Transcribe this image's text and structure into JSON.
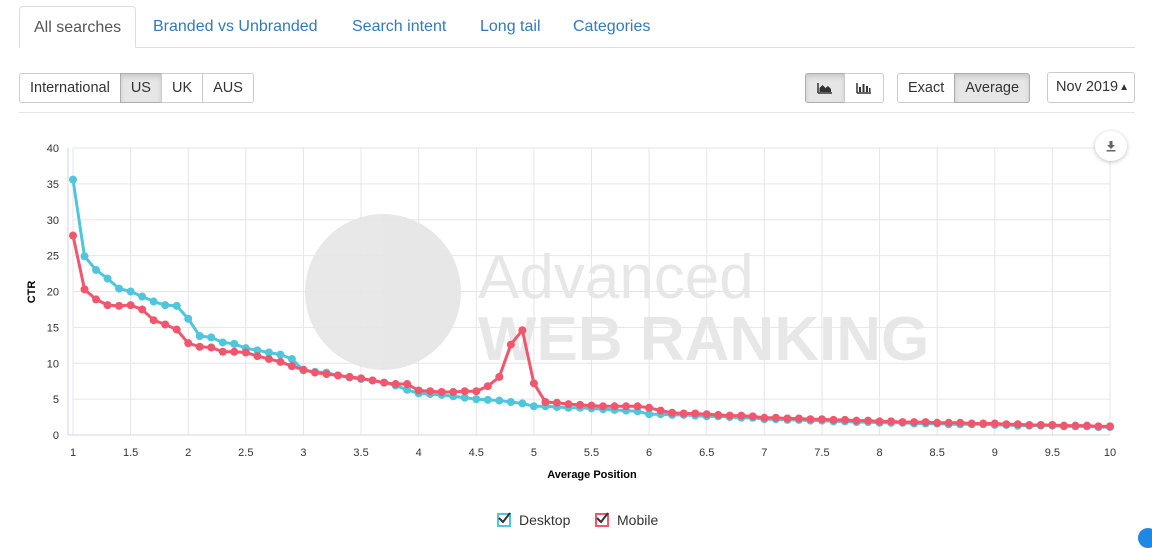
{
  "tabs": [
    {
      "label": "All searches",
      "active": true
    },
    {
      "label": "Branded vs Unbranded",
      "active": false
    },
    {
      "label": "Search intent",
      "active": false
    },
    {
      "label": "Long tail",
      "active": false
    },
    {
      "label": "Categories",
      "active": false
    }
  ],
  "regions": [
    {
      "label": "International",
      "active": false
    },
    {
      "label": "US",
      "active": true
    },
    {
      "label": "UK",
      "active": false
    },
    {
      "label": "AUS",
      "active": false
    }
  ],
  "chart_view": {
    "area_icon": "area-chart-icon",
    "bar_icon": "bar-chart-icon",
    "active": "area"
  },
  "match": [
    {
      "label": "Exact",
      "active": false
    },
    {
      "label": "Average",
      "active": true
    }
  ],
  "date_select": {
    "value": "Nov 2019",
    "icon": "select-arrows-icon"
  },
  "download_icon": "download-icon",
  "watermark": {
    "line1": "Advanced",
    "line2": "WEB RANKING"
  },
  "chart_data": {
    "type": "line",
    "xlabel": "Average Position",
    "ylabel": "CTR",
    "xlim": [
      1,
      10
    ],
    "ylim": [
      0,
      40
    ],
    "x_ticks": [
      "1",
      "1.5",
      "2",
      "2.5",
      "3",
      "3.5",
      "4",
      "4.5",
      "5",
      "5.5",
      "6",
      "6.5",
      "7",
      "7.5",
      "8",
      "8.5",
      "9",
      "9.5",
      "10"
    ],
    "y_ticks": [
      "0",
      "5",
      "10",
      "15",
      "20",
      "25",
      "30",
      "35",
      "40"
    ],
    "grid": true,
    "legend_position": "bottom-center",
    "x": [
      1.0,
      1.1,
      1.2,
      1.3,
      1.4,
      1.5,
      1.6,
      1.7,
      1.8,
      1.9,
      2.0,
      2.1,
      2.2,
      2.3,
      2.4,
      2.5,
      2.6,
      2.7,
      2.8,
      2.9,
      3.0,
      3.1,
      3.2,
      3.3,
      3.4,
      3.5,
      3.6,
      3.7,
      3.8,
      3.9,
      4.0,
      4.1,
      4.2,
      4.3,
      4.4,
      4.5,
      4.6,
      4.7,
      4.8,
      4.9,
      5.0,
      5.1,
      5.2,
      5.3,
      5.4,
      5.5,
      5.6,
      5.7,
      5.8,
      5.9,
      6.0,
      6.1,
      6.2,
      6.3,
      6.4,
      6.5,
      6.6,
      6.7,
      6.8,
      6.9,
      7.0,
      7.1,
      7.2,
      7.3,
      7.4,
      7.5,
      7.6,
      7.7,
      7.8,
      7.9,
      8.0,
      8.1,
      8.2,
      8.3,
      8.4,
      8.5,
      8.6,
      8.7,
      8.8,
      8.9,
      9.0,
      9.1,
      9.2,
      9.3,
      9.4,
      9.5,
      9.6,
      9.7,
      9.8,
      9.9,
      10.0
    ],
    "series": [
      {
        "name": "Desktop",
        "color": "#4fc6db",
        "values": [
          35.6,
          24.9,
          23.0,
          21.8,
          20.4,
          20.0,
          19.3,
          18.6,
          18.1,
          18.0,
          16.2,
          13.8,
          13.6,
          12.9,
          12.7,
          12.1,
          11.8,
          11.5,
          11.2,
          10.6,
          9.0,
          8.8,
          8.7,
          8.3,
          8.0,
          7.8,
          7.6,
          7.3,
          6.9,
          6.3,
          5.8,
          5.7,
          5.6,
          5.4,
          5.2,
          5.0,
          4.9,
          4.8,
          4.6,
          4.4,
          4.0,
          4.0,
          3.9,
          3.8,
          3.8,
          3.7,
          3.6,
          3.5,
          3.4,
          3.3,
          2.9,
          2.9,
          2.8,
          2.8,
          2.7,
          2.6,
          2.6,
          2.5,
          2.4,
          2.4,
          2.2,
          2.2,
          2.1,
          2.1,
          2.0,
          2.0,
          1.9,
          1.9,
          1.8,
          1.8,
          1.7,
          1.7,
          1.7,
          1.6,
          1.6,
          1.6,
          1.5,
          1.5,
          1.5,
          1.5,
          1.4,
          1.4,
          1.3,
          1.3,
          1.3,
          1.3,
          1.2,
          1.2,
          1.2,
          1.1,
          1.1
        ]
      },
      {
        "name": "Mobile",
        "color": "#f0566c",
        "values": [
          27.8,
          20.3,
          18.9,
          18.1,
          18.0,
          18.1,
          17.5,
          16.0,
          15.4,
          14.7,
          12.8,
          12.3,
          12.2,
          11.6,
          11.6,
          11.5,
          11.0,
          10.6,
          10.2,
          9.6,
          9.1,
          8.7,
          8.5,
          8.3,
          8.1,
          7.9,
          7.6,
          7.3,
          7.1,
          7.1,
          6.2,
          6.1,
          6.0,
          6.0,
          6.1,
          6.1,
          6.8,
          8.1,
          12.6,
          14.6,
          7.2,
          4.6,
          4.5,
          4.3,
          4.2,
          4.1,
          4.0,
          4.0,
          4.0,
          4.0,
          3.8,
          3.4,
          3.1,
          3.0,
          3.0,
          2.9,
          2.8,
          2.7,
          2.7,
          2.6,
          2.4,
          2.4,
          2.3,
          2.3,
          2.2,
          2.2,
          2.1,
          2.1,
          2.0,
          2.0,
          1.9,
          1.9,
          1.8,
          1.8,
          1.8,
          1.7,
          1.7,
          1.7,
          1.6,
          1.6,
          1.6,
          1.5,
          1.5,
          1.4,
          1.4,
          1.4,
          1.3,
          1.3,
          1.3,
          1.2,
          1.2
        ]
      }
    ]
  }
}
